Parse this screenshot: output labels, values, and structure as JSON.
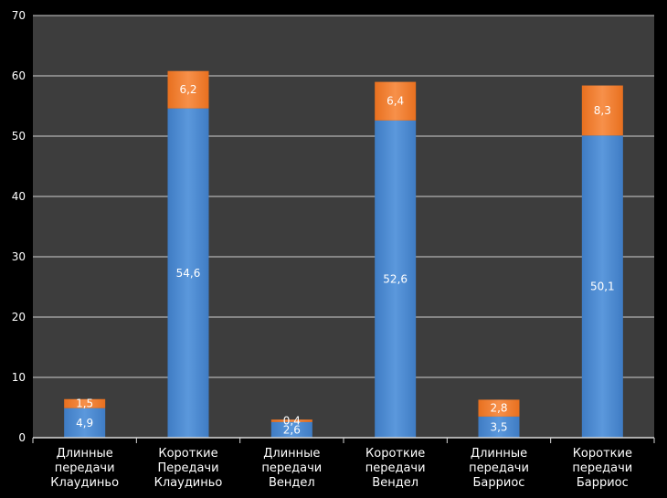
{
  "chart_data": {
    "type": "bar",
    "stacked": true,
    "categories": [
      [
        "Длинные",
        "передачи",
        "Клаудиньо"
      ],
      [
        "Короткие",
        "Передачи",
        "Клаудиньо"
      ],
      [
        "Длинные",
        "передачи",
        "Вендел"
      ],
      [
        "Короткие",
        "передачи",
        "Вендел"
      ],
      [
        "Длинные",
        "передачи",
        "Барриос"
      ],
      [
        "Короткие",
        "передачи",
        "Барриос"
      ]
    ],
    "series": [
      {
        "color": "#4a86cc",
        "values": [
          4.9,
          54.6,
          2.6,
          52.6,
          3.5,
          50.1
        ],
        "labels": [
          "4,9",
          "54,6",
          "2,6",
          "52,6",
          "3,5",
          "50,1"
        ]
      },
      {
        "color": "#f07a2a",
        "values": [
          1.5,
          6.2,
          0.4,
          6.4,
          2.8,
          8.3
        ],
        "labels": [
          "1,5",
          "6,2",
          "0,4",
          "6,4",
          "2,8",
          "8,3"
        ]
      }
    ],
    "title": "",
    "xlabel": "",
    "ylabel": "",
    "ylim": [
      0,
      70
    ],
    "yticks": [
      0,
      10,
      20,
      30,
      40,
      50,
      60,
      70
    ],
    "grid": true,
    "legend": "none",
    "background": "#3d3d3d",
    "gridColor": "#cfcfcf"
  }
}
